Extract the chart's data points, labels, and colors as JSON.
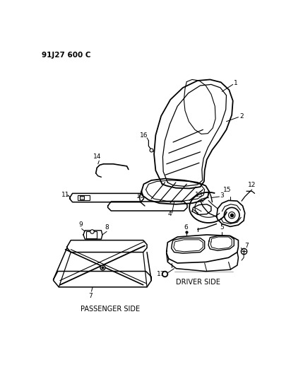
{
  "bg_color": "#ffffff",
  "line_color": "#000000",
  "text_color": "#000000",
  "header": "91J27 600 C",
  "footer_left": "PASSENGER SIDE",
  "footer_right": "DRIVER SIDE"
}
